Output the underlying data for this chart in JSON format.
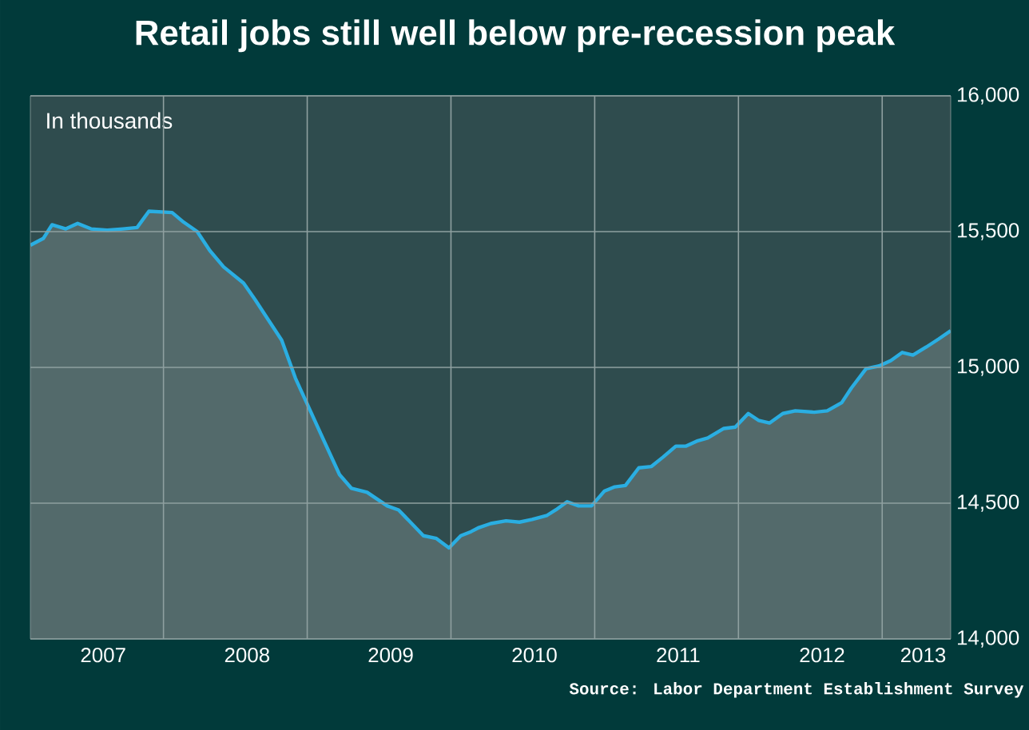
{
  "chart_data": {
    "type": "area",
    "title": "Retail jobs still well below pre-recession peak",
    "ylabel": "In thousands",
    "annotations": [
      "Source: Labor Department Establishment Survey"
    ],
    "x": [
      "2007-01-28",
      "2007-03-02",
      "2007-03-24",
      "2007-04-28",
      "2007-05-28",
      "2007-07-01",
      "2007-08-11",
      "2007-09-20",
      "2007-10-26",
      "2007-11-25",
      "2008-01-23",
      "2008-02-21",
      "2008-03-27",
      "2008-04-28",
      "2008-06-02",
      "2008-07-23",
      "2008-08-21",
      "2008-09-24",
      "2008-10-28",
      "2008-12-02",
      "2009-01-01",
      "2009-02-14",
      "2009-03-24",
      "2009-04-23",
      "2009-06-02",
      "2009-07-23",
      "2009-08-21",
      "2009-10-23",
      "2009-11-25",
      "2009-12-27",
      "2010-01-26",
      "2010-02-21",
      "2010-03-13",
      "2010-04-12",
      "2010-05-21",
      "2010-06-24",
      "2010-07-26",
      "2010-09-02",
      "2010-09-24",
      "2010-10-23",
      "2010-11-21",
      "2010-12-24",
      "2011-01-26",
      "2011-02-21",
      "2011-03-20",
      "2011-04-23",
      "2011-05-25",
      "2011-06-24",
      "2011-07-26",
      "2011-08-21",
      "2011-09-20",
      "2011-10-15",
      "2011-11-25",
      "2011-12-24",
      "2012-01-26",
      "2012-02-21",
      "2012-03-20",
      "2012-04-23",
      "2012-05-25",
      "2012-07-12",
      "2012-08-14",
      "2012-09-20",
      "2012-10-15",
      "2012-11-21",
      "2012-12-24",
      "2013-01-23",
      "2013-02-21",
      "2013-03-20",
      "2013-04-23",
      "2013-05-25",
      "2013-06-24"
    ],
    "series": [
      {
        "color": "#2aaee2",
        "values": [
          15450,
          15475,
          15525,
          15510,
          15530,
          15510,
          15505,
          15510,
          15515,
          15575,
          15570,
          15535,
          15500,
          15430,
          15370,
          15310,
          15250,
          15175,
          15100,
          14960,
          14865,
          14725,
          14605,
          14555,
          14540,
          14490,
          14475,
          14380,
          14370,
          14335,
          14380,
          14395,
          14410,
          14425,
          14435,
          14430,
          14440,
          14455,
          14475,
          14505,
          14490,
          14490,
          14545,
          14560,
          14565,
          14630,
          14635,
          14670,
          14710,
          14710,
          14730,
          14740,
          14775,
          14780,
          14830,
          14805,
          14795,
          14830,
          14840,
          14835,
          14840,
          14870,
          14925,
          14995,
          15005,
          15025,
          15055,
          15045,
          15075,
          15105,
          15135
        ]
      }
    ],
    "xlim": [
      "2007-01-28",
      "2013-06-24"
    ],
    "ylim": [
      14000,
      16000
    ],
    "xticks": [
      {
        "value": "2007-08-01",
        "label": "2007"
      },
      {
        "value": "2008-08-01",
        "label": "2008"
      },
      {
        "value": "2009-08-01",
        "label": "2009"
      },
      {
        "value": "2010-08-01",
        "label": "2010"
      },
      {
        "value": "2011-08-01",
        "label": "2011"
      },
      {
        "value": "2012-08-01",
        "label": "2012"
      },
      {
        "value": "2013-04-15",
        "label": "2013"
      },
      {
        "value": "2008-01-01",
        "label": null
      },
      {
        "value": "2009-01-01",
        "label": null
      },
      {
        "value": "2010-01-01",
        "label": null
      },
      {
        "value": "2011-01-01",
        "label": null
      },
      {
        "value": "2012-01-01",
        "label": null
      },
      {
        "value": "2013-01-01",
        "label": null
      }
    ],
    "yticks": [
      {
        "value": 14000,
        "label": "14,000"
      },
      {
        "value": 14500,
        "label": "14,500"
      },
      {
        "value": 15000,
        "label": "15,000"
      },
      {
        "value": 15500,
        "label": "15,500"
      },
      {
        "value": 16000,
        "label": "16,000"
      }
    ],
    "grid": true
  }
}
